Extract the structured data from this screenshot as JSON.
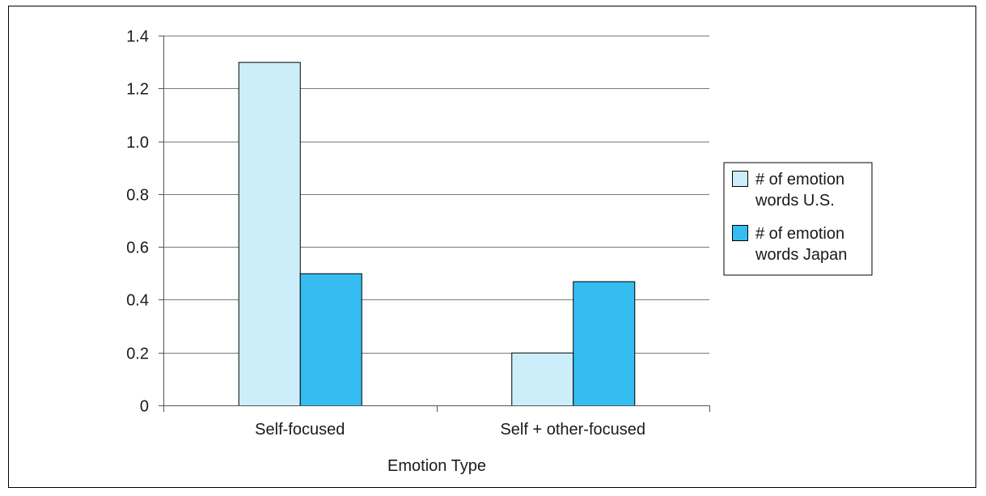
{
  "chart_data": {
    "type": "bar",
    "categories": [
      "Self-focused",
      "Self + other-focused"
    ],
    "series": [
      {
        "name": "# of emotion words U.S.",
        "legend_lines": [
          "# of emotion",
          "words U.S."
        ],
        "color": "#cceefa",
        "values": [
          1.3,
          0.2
        ]
      },
      {
        "name": "# of emotion words Japan",
        "legend_lines": [
          "# of emotion",
          "words Japan"
        ],
        "color": "#35bdf2",
        "values": [
          0.5,
          0.47
        ]
      }
    ],
    "title": "",
    "xlabel": "Emotion Type",
    "ylabel": "",
    "ylim": [
      0,
      1.4
    ],
    "yticks": [
      0,
      0.2,
      0.4,
      0.6,
      0.8,
      1.0,
      1.2,
      1.4
    ],
    "ytick_labels": [
      "0",
      "0.2",
      "0.4",
      "0.6",
      "0.8",
      "1.0",
      "1.2",
      "1.4"
    ],
    "grid": true,
    "legend_position": "right"
  }
}
